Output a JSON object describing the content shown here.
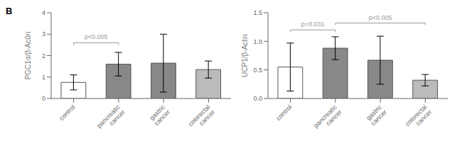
{
  "chart_data": [
    {
      "type": "bar",
      "ylabel": "PGC1α/β-Ac0n",
      "categories": [
        "control",
        "pancreatic\ncancer",
        "gastric\ncancer",
        "colorectal\ncancer"
      ],
      "values": [
        0.75,
        1.6,
        1.65,
        1.35
      ],
      "errors": [
        0.35,
        0.55,
        1.35,
        0.4
      ],
      "colors": [
        "white",
        "#888888",
        "#888888",
        "#bbbbbb"
      ],
      "ylim": [
        0,
        4
      ],
      "yticks": [
        0,
        1,
        2,
        3,
        4
      ],
      "significance": [
        {
          "x1": 0,
          "x2": 1,
          "y": 2.6,
          "label": "p<0.005",
          "color": "#999999"
        }
      ]
    },
    {
      "type": "bar",
      "ylabel": "UCP1/β-Actin",
      "categories": [
        "control",
        "pancreatic\ncancer",
        "gastric\ncancer",
        "colorectal\ncancer"
      ],
      "values": [
        0.55,
        0.88,
        0.67,
        0.32
      ],
      "errors": [
        0.42,
        0.2,
        0.42,
        0.1
      ],
      "colors": [
        "white",
        "#888888",
        "#888888",
        "#bbbbbb"
      ],
      "ylim": [
        0,
        1.5
      ],
      "yticks": [
        {
          "value": 0,
          "label": "0.0"
        },
        0.5,
        {
          "value": 1,
          "label": "1.0"
        },
        1.5
      ],
      "significance": [
        {
          "x1": 0,
          "x2": 1,
          "y": 1.2,
          "label": "p=0.031",
          "color": "#999999"
        },
        {
          "x1": 1,
          "x2": 3,
          "y": 1.32,
          "label": "p<0.005",
          "color": "#999999"
        }
      ]
    }
  ],
  "annotations": [
    "B"
  ]
}
